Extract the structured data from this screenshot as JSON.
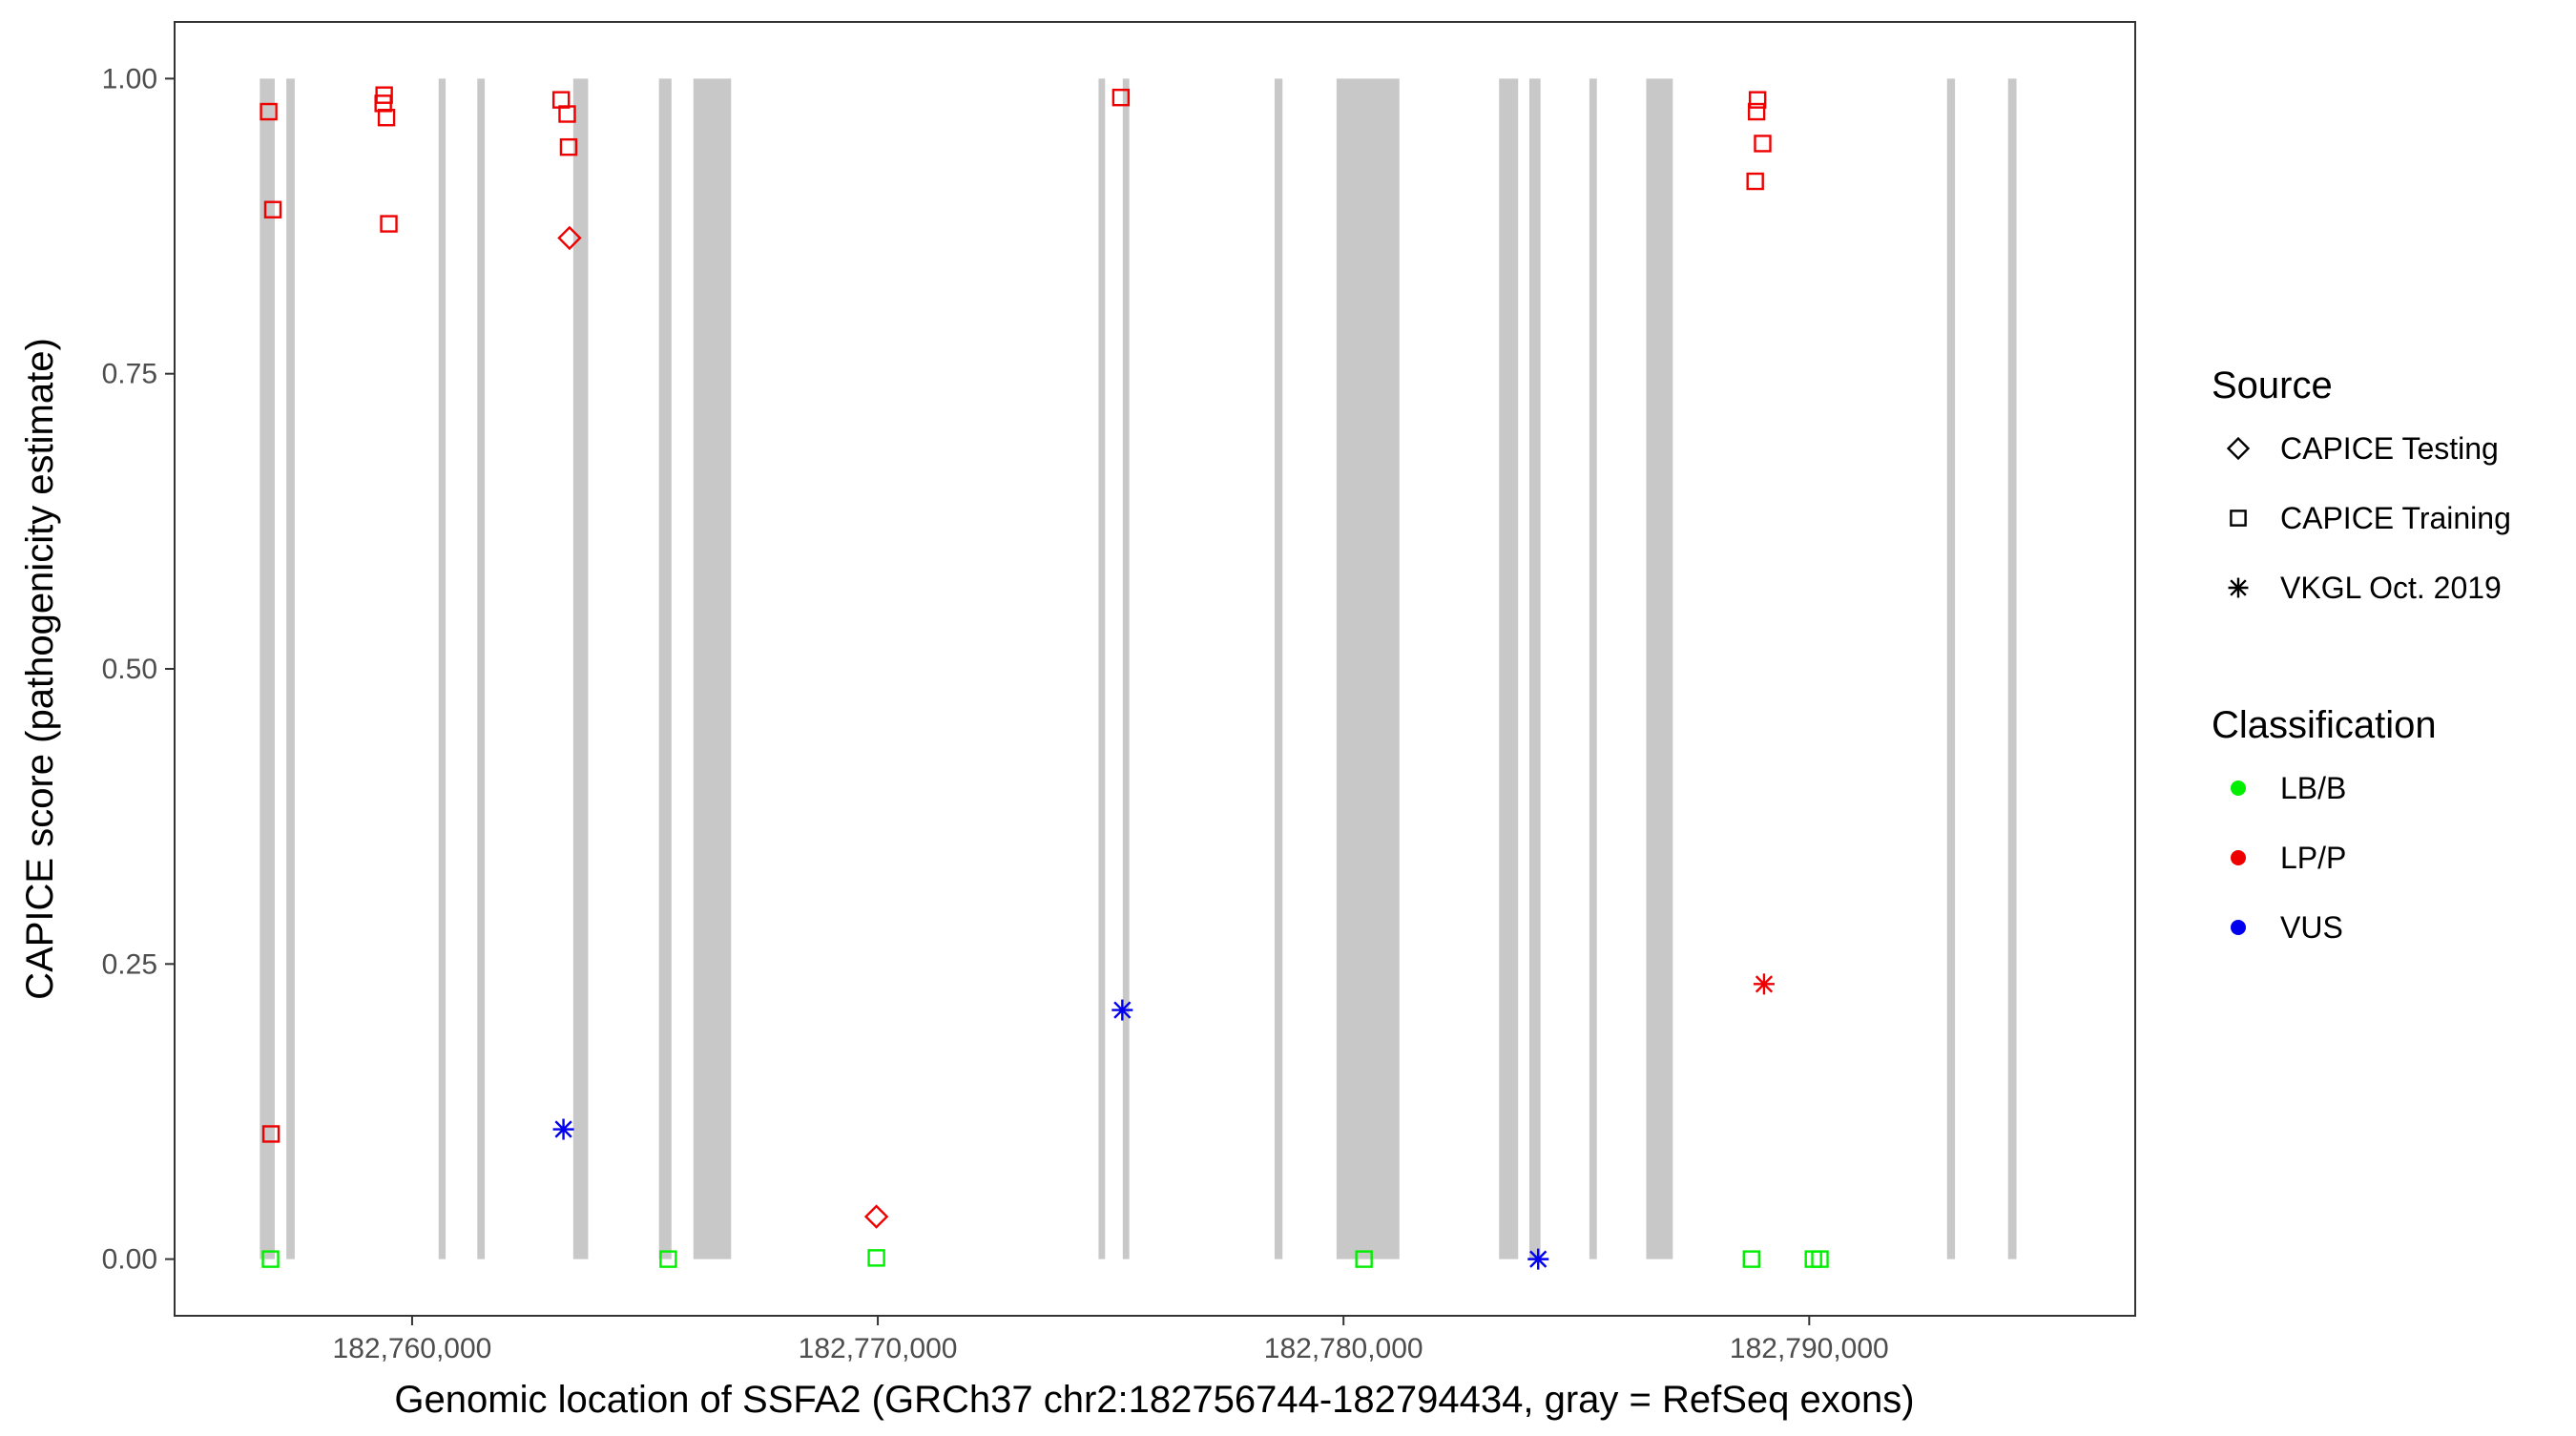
{
  "chart_data": {
    "type": "scatter",
    "xlabel": "Genomic location of SSFA2 (GRCh37 chr2:182756744-182794434, gray = RefSeq exons)",
    "ylabel": "CAPICE score (pathogenicity estimate)",
    "xlim": [
      182754900,
      182797000
    ],
    "ylim": [
      -0.048,
      1.048
    ],
    "x_ticks": [
      182760000,
      182770000,
      182780000,
      182790000
    ],
    "x_tick_labels": [
      "182,760,000",
      "182,770,000",
      "182,780,000",
      "182,790,000"
    ],
    "y_ticks": [
      0,
      0.25,
      0.5,
      0.75,
      1.0
    ],
    "y_tick_labels": [
      "0.00",
      "0.25",
      "0.50",
      "0.75",
      "1.00"
    ],
    "grid": false,
    "legend_position": "right",
    "legends": [
      {
        "title": "Source",
        "entries": [
          {
            "label": "CAPICE Testing",
            "shape": "diamond"
          },
          {
            "label": "CAPICE Training",
            "shape": "square"
          },
          {
            "label": "VKGL Oct. 2019",
            "shape": "asterisk"
          }
        ]
      },
      {
        "title": "Classification",
        "entries": [
          {
            "label": "LB/B",
            "color": "#00ee00"
          },
          {
            "label": "LP/P",
            "color": "#ee0000"
          },
          {
            "label": "VUS",
            "color": "#0000ee"
          }
        ]
      }
    ],
    "exon_color": "#c8c8c8",
    "exons": [
      [
        182756730,
        182757050
      ],
      [
        182757300,
        182757480
      ],
      [
        182760570,
        182760720
      ],
      [
        182761400,
        182761560
      ],
      [
        182763460,
        182763780
      ],
      [
        182765300,
        182765570
      ],
      [
        182766040,
        182766850
      ],
      [
        182774740,
        182774880
      ],
      [
        182775260,
        182775400
      ],
      [
        182778520,
        182778690
      ],
      [
        182779850,
        182781200
      ],
      [
        182783340,
        182783750
      ],
      [
        182783990,
        182784230
      ],
      [
        182785280,
        182785440
      ],
      [
        182786500,
        182787070
      ],
      [
        182792960,
        182793130
      ],
      [
        182794270,
        182794450
      ]
    ],
    "series": [
      {
        "source": "CAPICE Training",
        "classification": "LP/P",
        "points": [
          [
            182756920,
            0.972
          ],
          [
            182757010,
            0.889
          ],
          [
            182756970,
            0.106
          ],
          [
            182759400,
            0.986
          ],
          [
            182759380,
            0.979
          ],
          [
            182759450,
            0.967
          ],
          [
            182759500,
            0.877
          ],
          [
            182763200,
            0.982
          ],
          [
            182763330,
            0.97
          ],
          [
            182763360,
            0.942
          ],
          [
            182775220,
            0.984
          ],
          [
            182788890,
            0.982
          ],
          [
            182788870,
            0.972
          ],
          [
            182789000,
            0.945
          ],
          [
            182788840,
            0.913
          ]
        ]
      },
      {
        "source": "CAPICE Testing",
        "classification": "LP/P",
        "points": [
          [
            182763380,
            0.865
          ],
          [
            182769970,
            0.036
          ]
        ]
      },
      {
        "source": "CAPICE Training",
        "classification": "LB/B",
        "points": [
          [
            182756960,
            0.0
          ],
          [
            182765500,
            0.0
          ],
          [
            182769970,
            0.001
          ],
          [
            182780440,
            0.0
          ],
          [
            182788760,
            0.0
          ],
          [
            182790090,
            0.0
          ],
          [
            182790230,
            0.0
          ]
        ]
      },
      {
        "source": "VKGL Oct. 2019",
        "classification": "VUS",
        "points": [
          [
            182763250,
            0.11
          ],
          [
            182775250,
            0.211
          ],
          [
            182784180,
            0.0
          ]
        ]
      },
      {
        "source": "VKGL Oct. 2019",
        "classification": "LP/P",
        "points": [
          [
            182789030,
            0.233
          ]
        ]
      }
    ]
  }
}
